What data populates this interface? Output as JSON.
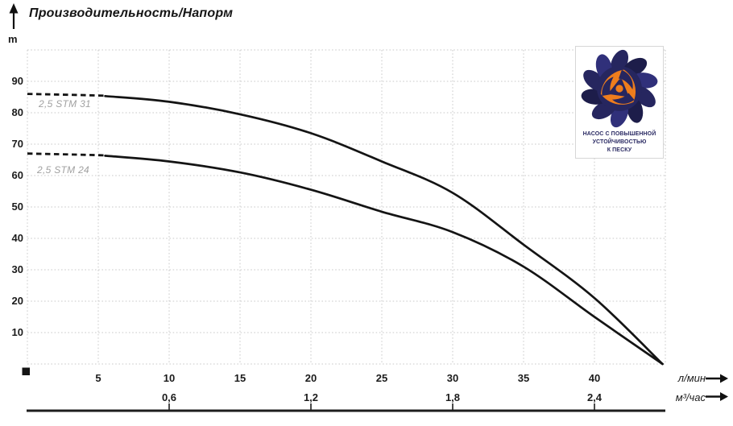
{
  "title": "Производительность/Напорм",
  "y_axis": {
    "unit_label": "m"
  },
  "x_axis_primary": {
    "unit_label": "л/мин"
  },
  "x_axis_secondary": {
    "unit_label": "м³/час"
  },
  "badge": {
    "lines": [
      "НАСОС С ПОВЫШЕННОЙ",
      "УСТОЙЧИВОСТЬЮ",
      "К ПЕСКУ"
    ]
  },
  "colors": {
    "curve": "#141414",
    "grid": "#c9c9c9",
    "axis_line": "#1d1d1d",
    "curve_label_gray": "#a1a1a1",
    "logo_navy": "#26265f",
    "logo_navy_dark": "#1d1d4a",
    "logo_navy_light": "#30307a",
    "logo_orange": "#ee7d1d"
  },
  "chart_data": {
    "type": "line",
    "title": "Производительность/Напорм",
    "ylabel": "m",
    "xlabel_primary": "л/мин",
    "xlabel_secondary": "м³/час",
    "xlim_lmin": [
      0,
      45
    ],
    "ylim_m": [
      0,
      100
    ],
    "x_grid_step": 5,
    "y_grid_step": 10,
    "grid": true,
    "y_ticks_m": [
      10,
      20,
      30,
      40,
      50,
      60,
      70,
      80,
      90
    ],
    "x_ticks_lmin": [
      5,
      10,
      15,
      20,
      25,
      30,
      35,
      40
    ],
    "x_ticks_m3h": [
      {
        "label": "0,6",
        "value": 0.6,
        "at_lmin": 10
      },
      {
        "label": "1,2",
        "value": 1.2,
        "at_lmin": 20
      },
      {
        "label": "1,8",
        "value": 1.8,
        "at_lmin": 30
      },
      {
        "label": "2,4",
        "value": 2.4,
        "at_lmin": 40
      }
    ],
    "series": [
      {
        "name": "2,5 STM 31",
        "dashed_until_lmin": 5.5,
        "x_lmin": [
          0,
          5,
          10,
          15,
          20,
          25,
          30,
          35,
          40,
          44.8
        ],
        "y_m": [
          86,
          85.5,
          83.5,
          79.5,
          73.5,
          64.5,
          54.5,
          38,
          21,
          0
        ]
      },
      {
        "name": "2,5 STM 24",
        "dashed_until_lmin": 5.5,
        "x_lmin": [
          0,
          5,
          10,
          15,
          20,
          25,
          30,
          35,
          40,
          44.8
        ],
        "y_m": [
          67,
          66.5,
          64.5,
          61,
          55.5,
          48.5,
          42,
          31,
          15,
          0
        ]
      }
    ]
  }
}
